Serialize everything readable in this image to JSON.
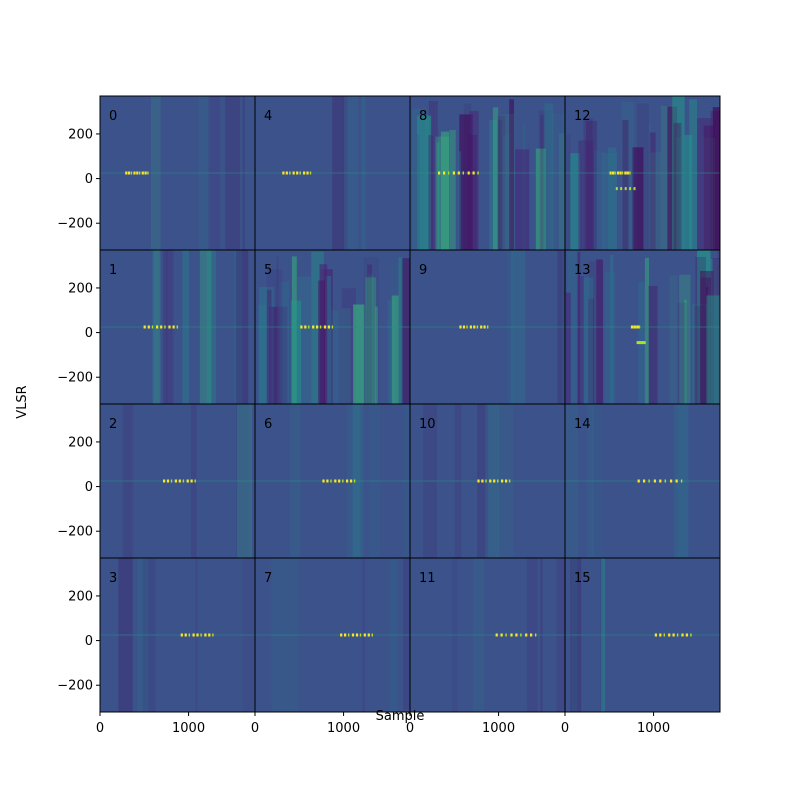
{
  "chart_data": {
    "type": "heatmap",
    "layout": "4x4 grid of panels, column-major numbering (0-3 in first column, 4-7 second, 8-11 third, 12-15 fourth)",
    "xlabel": "Sample",
    "ylabel": "VLSR",
    "xlim": [
      0,
      1750
    ],
    "ylim": [
      -320,
      370
    ],
    "x_ticks": [
      0,
      1000
    ],
    "x_tick_labels": [
      "0",
      "1000"
    ],
    "y_ticks": [
      200,
      0,
      -200
    ],
    "y_tick_labels": [
      "200",
      "0",
      "−200"
    ],
    "colormap": "viridis",
    "background_color": "#3b528b",
    "panels": [
      {
        "label": "0",
        "line_vlsr": 25,
        "emission_x": [
          280,
          560
        ],
        "variation": "low"
      },
      {
        "label": "1",
        "line_vlsr": 25,
        "emission_x": [
          480,
          900
        ],
        "variation": "medium"
      },
      {
        "label": "2",
        "line_vlsr": 25,
        "emission_x": [
          700,
          1100
        ],
        "variation": "low"
      },
      {
        "label": "3",
        "line_vlsr": 25,
        "emission_x": [
          900,
          1300
        ],
        "variation": "low"
      },
      {
        "label": "4",
        "line_vlsr": 25,
        "emission_x": [
          300,
          650
        ],
        "variation": "low"
      },
      {
        "label": "5",
        "line_vlsr": 25,
        "emission_x": [
          500,
          900
        ],
        "variation": "high"
      },
      {
        "label": "6",
        "line_vlsr": 25,
        "emission_x": [
          750,
          1150
        ],
        "variation": "low"
      },
      {
        "label": "7",
        "line_vlsr": 25,
        "emission_x": [
          950,
          1350
        ],
        "variation": "low"
      },
      {
        "label": "8",
        "line_vlsr": 25,
        "emission_x": [
          300,
          800
        ],
        "variation": "high"
      },
      {
        "label": "9",
        "line_vlsr": 25,
        "emission_x": [
          550,
          900
        ],
        "variation": "low"
      },
      {
        "label": "10",
        "line_vlsr": 25,
        "emission_x": [
          750,
          1150
        ],
        "variation": "low"
      },
      {
        "label": "11",
        "line_vlsr": 25,
        "emission_x": [
          950,
          1450
        ],
        "variation": "low"
      },
      {
        "label": "12",
        "line_vlsr": 25,
        "emission_x": [
          500,
          750
        ],
        "variation": "high",
        "second_line_vlsr": -45
      },
      {
        "label": "13",
        "line_vlsr": 25,
        "emission_x": [
          750,
          850
        ],
        "variation": "high",
        "second_line_vlsr": -45
      },
      {
        "label": "14",
        "line_vlsr": 25,
        "emission_x": [
          800,
          1350
        ],
        "variation": "low"
      },
      {
        "label": "15",
        "line_vlsr": 25,
        "emission_x": [
          1000,
          1450
        ],
        "variation": "low"
      }
    ]
  }
}
